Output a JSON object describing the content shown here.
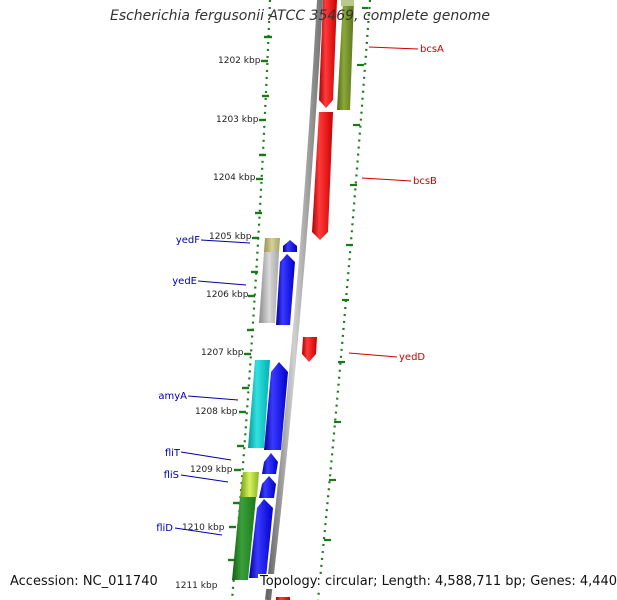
{
  "title": "Escherichia fergusonii ATCC 35469, complete genome",
  "ticks": [
    "1202 kbp",
    "1203 kbp",
    "1204 kbp",
    "1205 kbp",
    "1206 kbp",
    "1207 kbp",
    "1208 kbp",
    "1209 kbp",
    "1210 kbp",
    "1211 kbp"
  ],
  "genes_right": [
    "bcsA",
    "bcsB",
    "yedD"
  ],
  "genes_left": [
    "yedF",
    "yedE",
    "amyA",
    "fliT",
    "fliS",
    "fliD"
  ],
  "footer": {
    "accession": "Accession: NC_011740",
    "summary": "Topology: circular; Length: 4,588,711 bp; Genes: 4,440"
  },
  "colors": {
    "forward_gene": "#0000ff",
    "reverse_gene": "#ff0000",
    "forward_label": "#0000aa",
    "reverse_label": "#cc0000",
    "tick": "#1a7a1a",
    "backbone": "#888888"
  }
}
